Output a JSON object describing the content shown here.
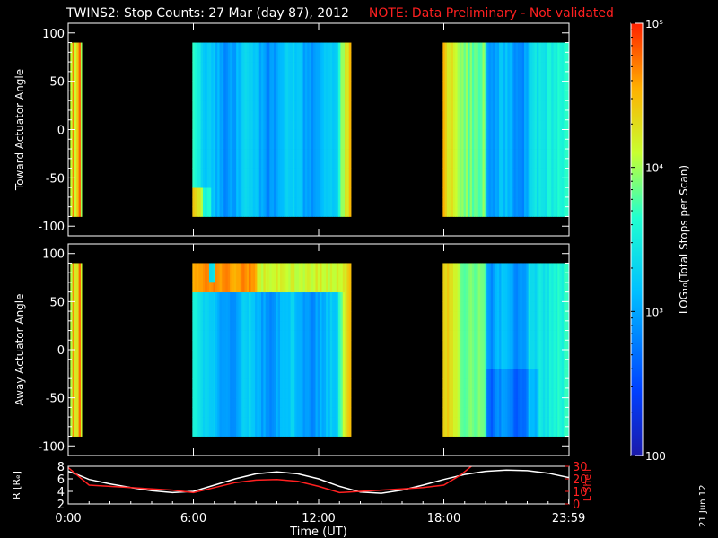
{
  "title": {
    "main": "TWINS2: Stop Counts: 27 Mar (day  87), 2012",
    "note": "NOTE: Data Preliminary - Not validated"
  },
  "side_date": "21 Jun 12",
  "colorbar": {
    "label": "LOG₁₀(Total Stops per Scan)",
    "ticks": [
      {
        "value": 100,
        "label": "100"
      },
      {
        "value": 1000,
        "label": "10³"
      },
      {
        "value": 10000,
        "label": "10⁴"
      },
      {
        "value": 100000,
        "label": "10⁵"
      }
    ],
    "scale": "log",
    "range": [
      100,
      100000
    ]
  },
  "time_axis": {
    "label": "Time (UT)",
    "range_hours": [
      0,
      24
    ],
    "ticks": [
      {
        "value": 0,
        "label": "0:00"
      },
      {
        "value": 6,
        "label": "6:00"
      },
      {
        "value": 12,
        "label": "12:00"
      },
      {
        "value": 18,
        "label": "18:00"
      },
      {
        "value": 23.983,
        "label": "23:59"
      }
    ]
  },
  "chart_data": [
    {
      "type": "heatmap",
      "ylabel": "Toward Actuator Angle",
      "ylim": [
        -110,
        110
      ],
      "yticks": [
        -100,
        -50,
        0,
        50,
        100
      ],
      "angle_range": [
        -90,
        90
      ],
      "data_intervals_hours": [
        [
          0.1,
          0.65
        ],
        [
          5.95,
          13.55
        ],
        [
          17.95,
          24.0
        ]
      ],
      "colorbar": "log10 total stops per scan"
    },
    {
      "type": "heatmap",
      "ylabel": "Away Actuator Angle",
      "ylim": [
        -110,
        110
      ],
      "yticks": [
        -100,
        -50,
        0,
        50,
        100
      ],
      "angle_range": [
        -90,
        90
      ],
      "data_intervals_hours": [
        [
          0.1,
          0.65
        ],
        [
          5.95,
          13.55
        ],
        [
          17.95,
          24.0
        ]
      ],
      "colorbar": "log10 total stops per scan"
    },
    {
      "type": "line",
      "ylabel_left": "R [Rₑ]",
      "ylabel_right": "L Shell",
      "ylim_left": [
        2,
        8
      ],
      "yticks_left": [
        2,
        4,
        6,
        8
      ],
      "ylim_right": [
        0,
        30
      ],
      "yticks_right": [
        0,
        10,
        20,
        30
      ],
      "series": [
        {
          "axis": "left",
          "color": "#ffffff",
          "x": [
            0,
            0.5,
            1,
            2,
            3,
            4,
            5,
            6,
            7,
            8,
            9,
            10,
            11,
            12,
            13,
            14,
            15,
            16,
            17,
            18,
            19,
            20,
            21,
            22,
            23,
            24
          ],
          "y": [
            7.2,
            6.6,
            5.9,
            5.2,
            4.6,
            4.1,
            3.8,
            4.0,
            5.0,
            6.0,
            6.8,
            7.1,
            6.8,
            6.0,
            4.8,
            3.9,
            3.7,
            4.2,
            5.0,
            5.9,
            6.7,
            7.2,
            7.4,
            7.3,
            6.9,
            6.2
          ]
        },
        {
          "axis": "right",
          "color": "#ff2020",
          "x": [
            0,
            0.5,
            1,
            2,
            3,
            4,
            5,
            6,
            7,
            8,
            9,
            10,
            11,
            12,
            13,
            14,
            15,
            16,
            17,
            18,
            18.8,
            19.4
          ],
          "y": [
            29,
            22,
            15,
            14,
            13,
            12,
            11,
            9,
            13,
            17,
            19,
            19.5,
            18,
            14,
            9,
            10,
            11,
            12,
            13,
            15,
            23,
            31
          ]
        }
      ]
    }
  ]
}
